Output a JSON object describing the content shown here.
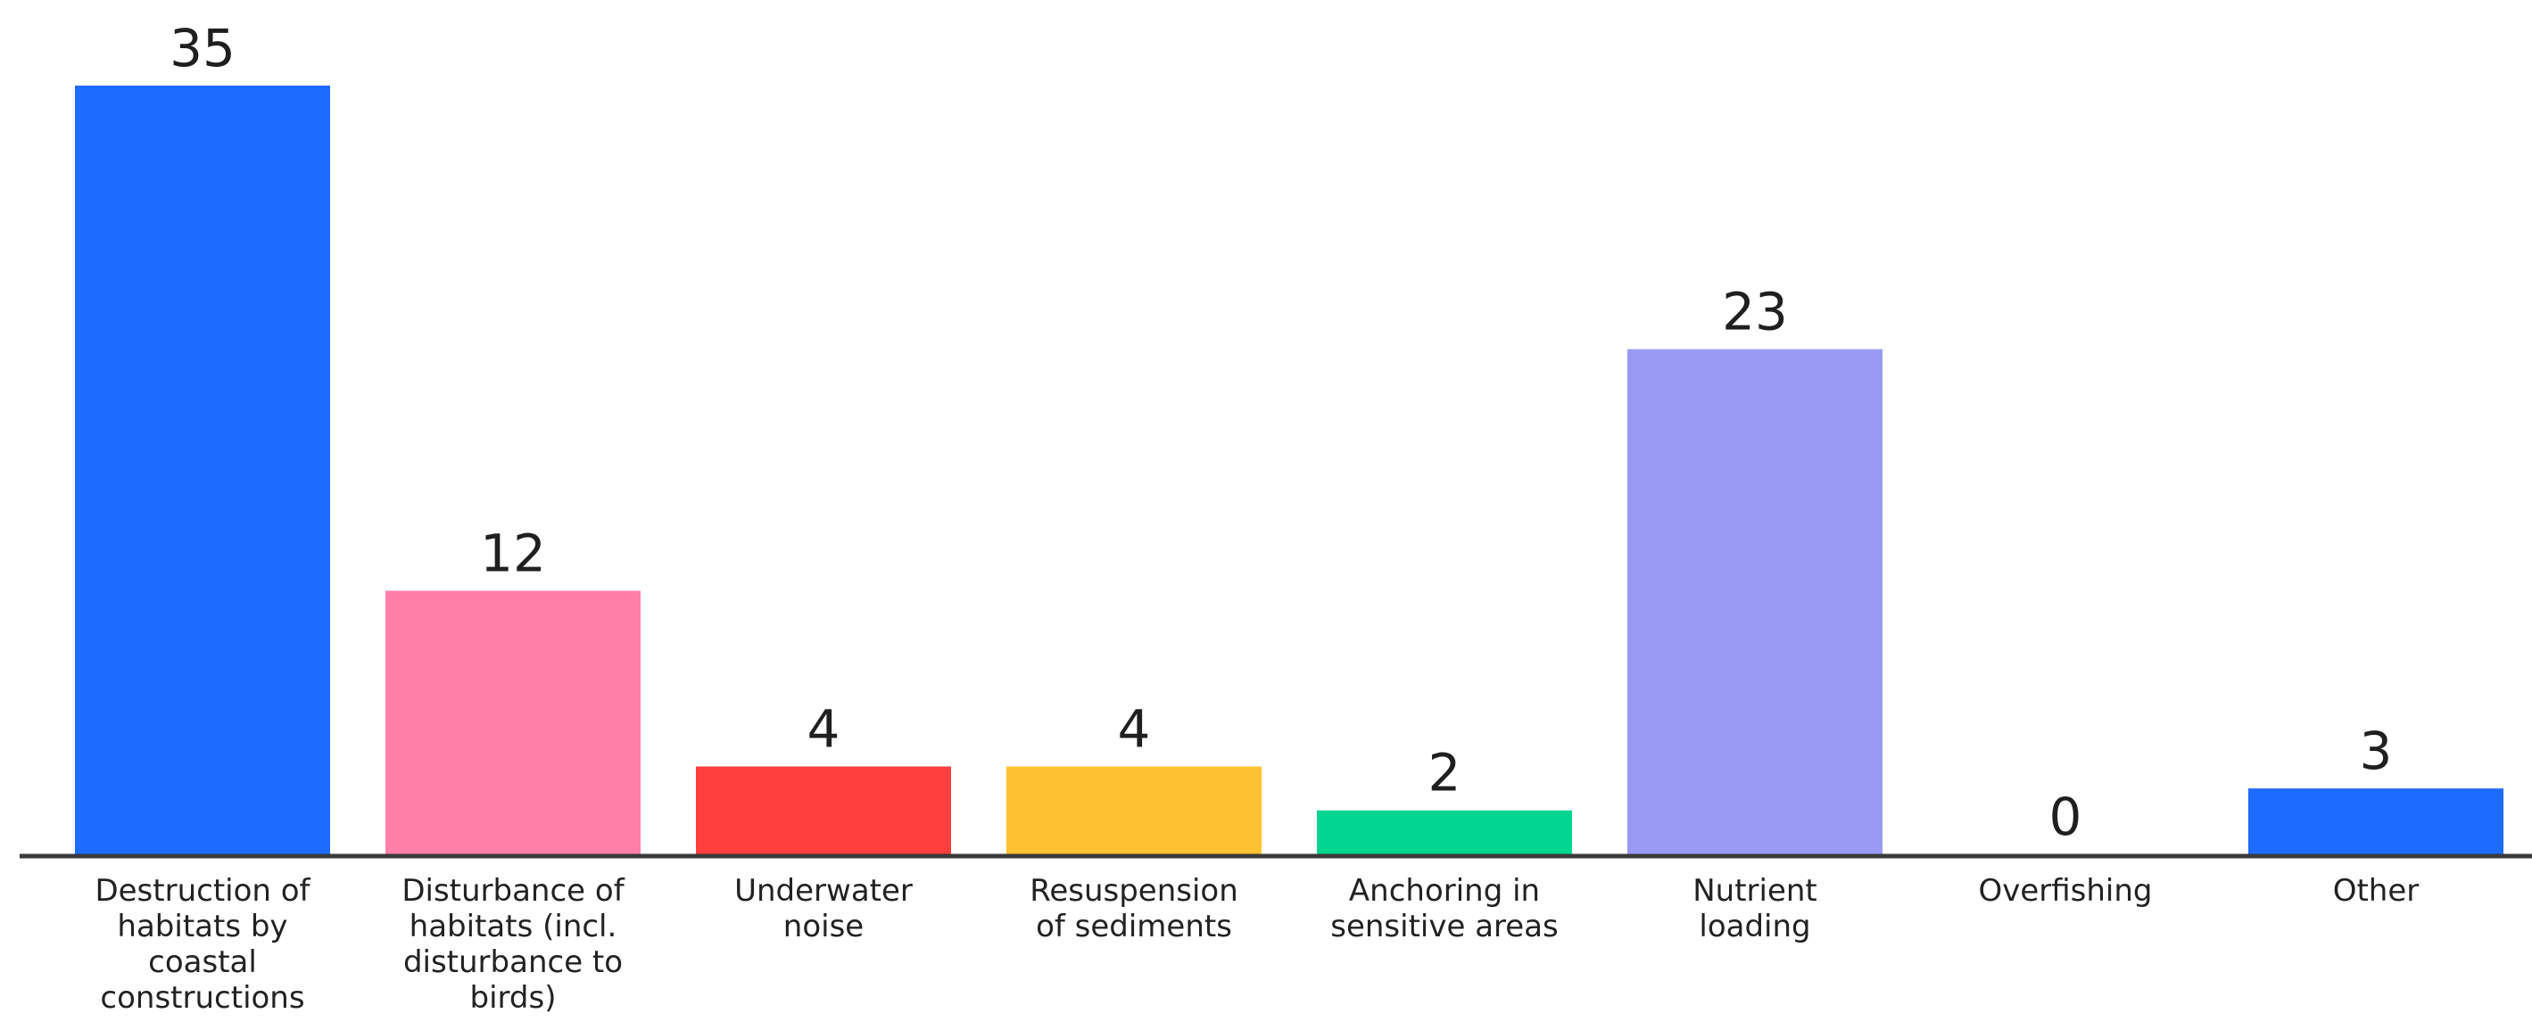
{
  "chart_data": {
    "type": "bar",
    "title": "",
    "xlabel": "",
    "ylabel": "",
    "ylim": [
      0,
      35
    ],
    "grid": false,
    "legend": "none",
    "categories": [
      [
        "Destruction of",
        "habitats by",
        "coastal",
        "constructions"
      ],
      [
        "Disturbance of",
        "habitats (incl.",
        "disturbance to",
        "birds)"
      ],
      [
        "Underwater",
        "noise"
      ],
      [
        "Resuspension",
        "of sediments"
      ],
      [
        "Anchoring in",
        "sensitive areas"
      ],
      [
        "Nutrient",
        "loading"
      ],
      [
        "Overfishing"
      ],
      [
        "Other"
      ]
    ],
    "values": [
      35,
      12,
      4,
      4,
      2,
      23,
      0,
      3
    ],
    "value_labels": [
      "35",
      "12",
      "4",
      "4",
      "2",
      "23",
      "0",
      "3"
    ],
    "colors": [
      "#1e6bff",
      "#ff7fa9",
      "#ff3e3e",
      "#ffc233",
      "#00d68f",
      "#9a9af5",
      "#1e6bff",
      "#1e6bff"
    ],
    "axis_color": "#3a3a3a"
  }
}
